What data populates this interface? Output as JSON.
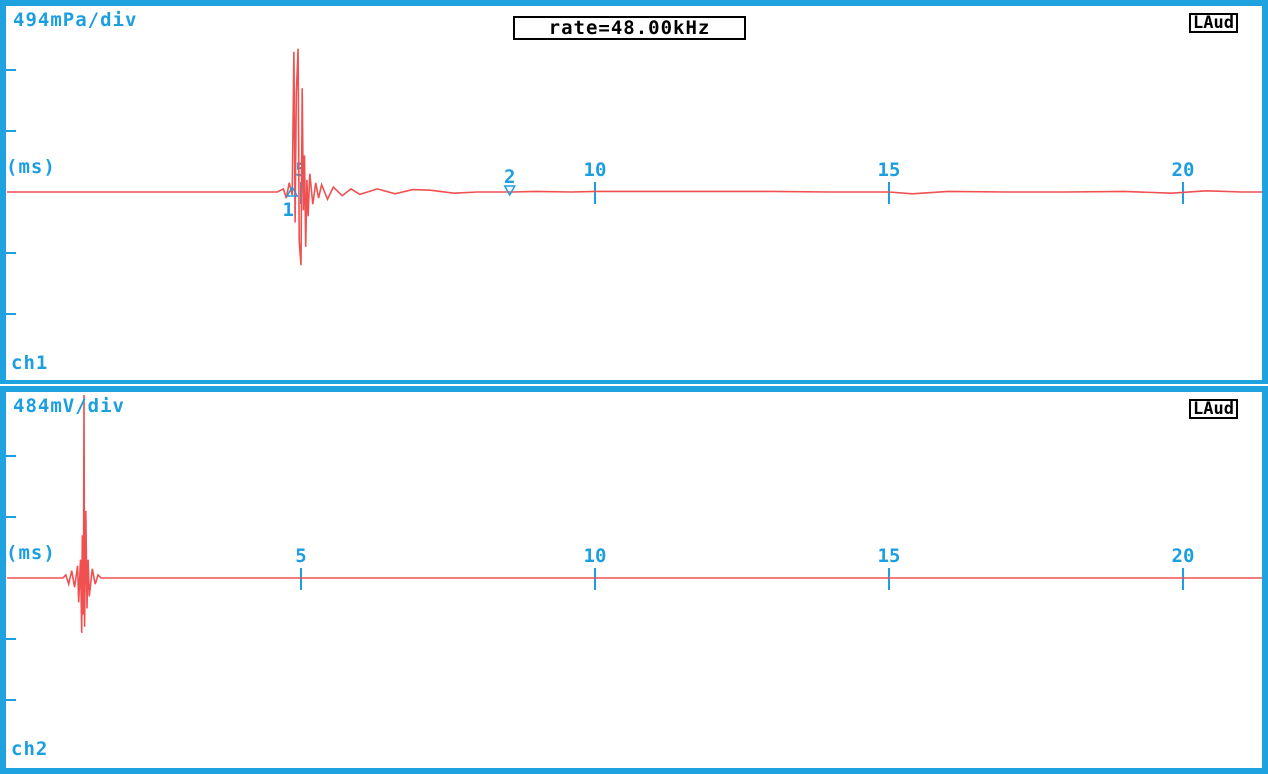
{
  "header": {
    "rate_label": "rate=48.00kHz"
  },
  "channels": [
    {
      "id": "ch1",
      "label": "ch1",
      "scale": "494mPa/div",
      "source": "LAud",
      "unit": "(ms)"
    },
    {
      "id": "ch2",
      "label": "ch2",
      "scale": "484mV/div",
      "source": "LAud",
      "unit": "(ms)"
    }
  ],
  "markers": [
    {
      "label": "1",
      "x": 4.85,
      "direction": "up"
    },
    {
      "label": "2",
      "x": 8.55,
      "direction": "down"
    }
  ],
  "colors": {
    "trace": "#f05050",
    "axis": "#1c9fe0",
    "frame": "#1ea3e0"
  },
  "chart_data": [
    {
      "type": "line",
      "title": "",
      "channel": "ch1",
      "xlabel": "(ms)",
      "ylabel": "494mPa/div",
      "xlim": [
        0,
        22.2
      ],
      "ylim": [
        -3,
        3
      ],
      "x_ticks": [
        5,
        10,
        15,
        20
      ],
      "y_ticks_div": [
        -2,
        -1,
        1,
        2
      ],
      "series": [
        {
          "values": [
            [
              0,
              0
            ],
            [
              4.6,
              0
            ],
            [
              4.7,
              0.05
            ],
            [
              4.75,
              -0.1
            ],
            [
              4.8,
              0.15
            ],
            [
              4.85,
              -0.05
            ],
            [
              4.88,
              2.3
            ],
            [
              4.9,
              -0.5
            ],
            [
              4.92,
              1.6
            ],
            [
              4.95,
              2.35
            ],
            [
              4.97,
              -0.8
            ],
            [
              5.0,
              -1.2
            ],
            [
              5.02,
              1.7
            ],
            [
              5.04,
              -0.3
            ],
            [
              5.06,
              0.6
            ],
            [
              5.08,
              -0.9
            ],
            [
              5.1,
              0.2
            ],
            [
              5.12,
              -0.4
            ],
            [
              5.15,
              0.3
            ],
            [
              5.2,
              -0.2
            ],
            [
              5.25,
              0.15
            ],
            [
              5.3,
              -0.1
            ],
            [
              5.35,
              0.12
            ],
            [
              5.45,
              -0.12
            ],
            [
              5.55,
              0.08
            ],
            [
              5.7,
              -0.06
            ],
            [
              5.85,
              0.05
            ],
            [
              6.0,
              -0.04
            ],
            [
              6.3,
              0.05
            ],
            [
              6.6,
              -0.03
            ],
            [
              6.9,
              0.04
            ],
            [
              7.2,
              0.03
            ],
            [
              7.6,
              -0.02
            ],
            [
              8.0,
              0.0
            ],
            [
              8.6,
              0.0
            ],
            [
              9.0,
              0.01
            ],
            [
              9.6,
              0.0
            ],
            [
              10.0,
              0.01
            ],
            [
              11.0,
              0.01
            ],
            [
              12.0,
              0.01
            ],
            [
              13.0,
              0.01
            ],
            [
              14.0,
              0.0
            ],
            [
              15.0,
              0.0
            ],
            [
              15.4,
              -0.03
            ],
            [
              16.0,
              0.01
            ],
            [
              17.0,
              0.0
            ],
            [
              18.0,
              0.0
            ],
            [
              19.0,
              0.01
            ],
            [
              19.8,
              -0.02
            ],
            [
              20.4,
              0.02
            ],
            [
              21.0,
              0.0
            ],
            [
              22.2,
              0.0
            ]
          ]
        }
      ]
    },
    {
      "type": "line",
      "title": "",
      "channel": "ch2",
      "xlabel": "(ms)",
      "ylabel": "484mV/div",
      "xlim": [
        0,
        22.2
      ],
      "ylim": [
        -3,
        3
      ],
      "x_ticks": [
        5,
        10,
        15,
        20
      ],
      "y_ticks_div": [
        -2,
        -1,
        1,
        2
      ],
      "series": [
        {
          "values": [
            [
              0,
              0
            ],
            [
              0.95,
              0
            ],
            [
              1.0,
              0.05
            ],
            [
              1.05,
              -0.1
            ],
            [
              1.1,
              0.12
            ],
            [
              1.15,
              -0.15
            ],
            [
              1.2,
              0.2
            ],
            [
              1.22,
              -0.4
            ],
            [
              1.25,
              0.3
            ],
            [
              1.27,
              -0.9
            ],
            [
              1.28,
              0.7
            ],
            [
              1.3,
              -0.6
            ],
            [
              1.31,
              3.0
            ],
            [
              1.32,
              -0.8
            ],
            [
              1.34,
              1.1
            ],
            [
              1.36,
              -0.5
            ],
            [
              1.38,
              0.3
            ],
            [
              1.4,
              -0.3
            ],
            [
              1.45,
              0.15
            ],
            [
              1.5,
              -0.1
            ],
            [
              1.55,
              0.05
            ],
            [
              1.6,
              0
            ],
            [
              22.2,
              0
            ]
          ]
        }
      ]
    }
  ]
}
